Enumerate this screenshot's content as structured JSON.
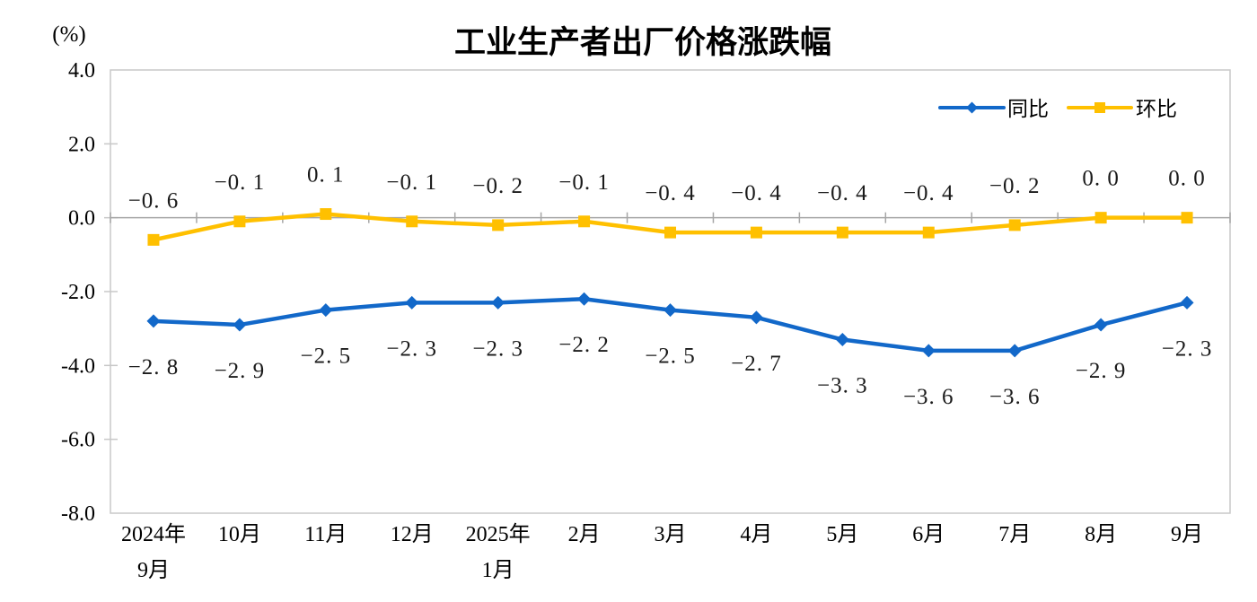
{
  "chart_data": {
    "type": "line",
    "title": "工业生产者出厂价格涨跌幅",
    "unit_label": "(%)",
    "categories": [
      [
        "2024年",
        "9月"
      ],
      [
        "10月"
      ],
      [
        "11月"
      ],
      [
        "12月"
      ],
      [
        "2025年",
        "1月"
      ],
      [
        "2月"
      ],
      [
        "3月"
      ],
      [
        "4月"
      ],
      [
        "5月"
      ],
      [
        "6月"
      ],
      [
        "7月"
      ],
      [
        "8月"
      ],
      [
        "9月"
      ]
    ],
    "series": [
      {
        "id": "yoy",
        "name": "同比",
        "color": "#1268C9",
        "marker": "diamond",
        "label_position": "below",
        "values": [
          -2.8,
          -2.9,
          -2.5,
          -2.3,
          -2.3,
          -2.2,
          -2.5,
          -2.7,
          -3.3,
          -3.6,
          -3.6,
          -2.9,
          -2.3
        ]
      },
      {
        "id": "mom",
        "name": "环比",
        "color": "#FFC000",
        "marker": "square",
        "label_position": "above",
        "values": [
          -0.6,
          -0.1,
          0.1,
          -0.1,
          -0.2,
          -0.1,
          -0.4,
          -0.4,
          -0.4,
          -0.4,
          -0.2,
          0.0,
          0.0
        ]
      }
    ],
    "y_axis": {
      "max": 4.0,
      "min": -8.0,
      "step": 2.0,
      "tick_labels": [
        "4.0",
        "2.0",
        "0.0",
        "-2.0",
        "-4.0",
        "-6.0",
        "-8.0"
      ]
    },
    "legend_position": "top-right",
    "grid": false,
    "frame_color": "#C8C8C8",
    "axis_color": "#A6A6A6",
    "label_text_color": "#1a1a1a"
  }
}
